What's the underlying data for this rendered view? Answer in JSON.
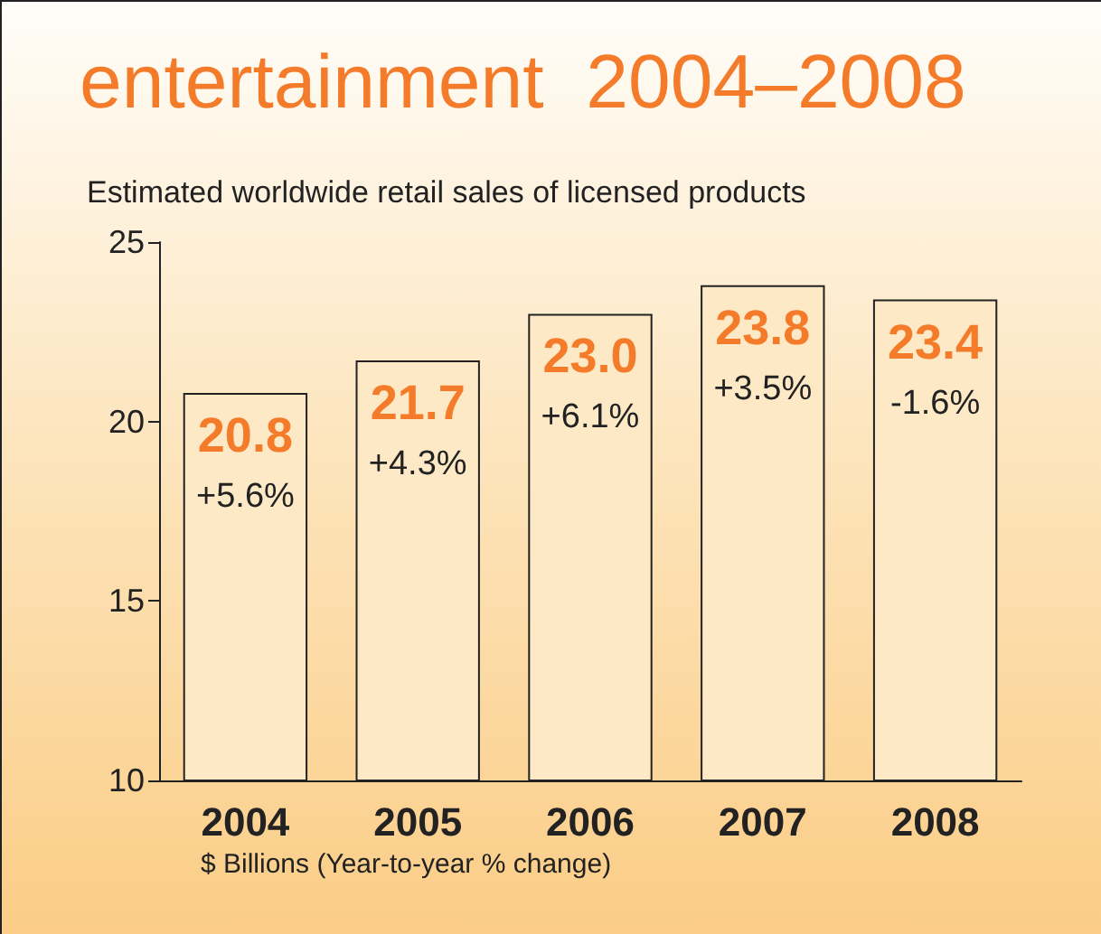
{
  "chart_data": {
    "type": "bar",
    "title": "entertainment  2004–2008",
    "subtitle": "Estimated worldwide retail sales of licensed products",
    "categories": [
      "2004",
      "2005",
      "2006",
      "2007",
      "2008"
    ],
    "values": [
      20.8,
      21.7,
      23.0,
      23.8,
      23.4
    ],
    "color": "#fde9c6",
    "ylim": [
      10,
      25
    ],
    "yticks": [
      10,
      15,
      20,
      25
    ],
    "grid": false,
    "value_labels": [
      "20.8",
      "21.7",
      "23.0",
      "23.8",
      "23.4"
    ],
    "annotations": [
      {
        "text": "+5.6%",
        "x": "2004",
        "y": 20.8
      },
      {
        "text": "+4.3%",
        "x": "2005",
        "y": 21.7
      },
      {
        "text": "+6.1%",
        "x": "2006",
        "y": 23.0
      },
      {
        "text": "+3.5%",
        "x": "2007",
        "y": 23.8
      },
      {
        "text": "-1.6%",
        "x": "2008",
        "y": 23.4
      },
      "$ Billions (Year-to-year % change)"
    ]
  }
}
